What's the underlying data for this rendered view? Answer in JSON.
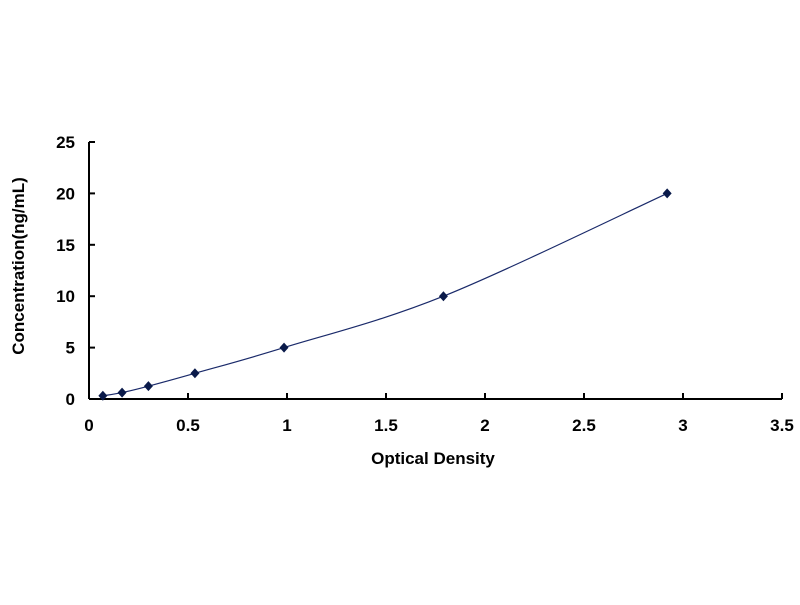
{
  "chart_data": {
    "type": "scatter",
    "title": "",
    "xlabel": "Optical Density",
    "ylabel": "Concentration(ng/mL)",
    "xlim": [
      0,
      3.5
    ],
    "ylim": [
      0,
      25
    ],
    "xticks": [
      "0",
      "0.5",
      "1",
      "1.5",
      "2",
      "2.5",
      "3",
      "3.5"
    ],
    "yticks": [
      "0",
      "5",
      "10",
      "15",
      "20",
      "25"
    ],
    "grid": false,
    "legend": "none",
    "trendline": "smooth curve through points",
    "colors": {
      "marker": "#0a1a4a",
      "line": "#1a2a6a"
    },
    "series": [
      {
        "x": [
          0.07,
          0.167,
          0.3,
          0.535,
          0.985,
          1.79,
          2.92
        ],
        "y": [
          0.3125,
          0.625,
          1.25,
          2.5,
          5,
          10,
          20
        ]
      }
    ]
  }
}
